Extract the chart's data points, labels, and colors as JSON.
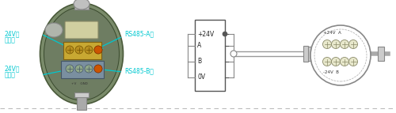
{
  "bg_color": "#ffffff",
  "cyan_color": "#00c8d0",
  "figsize": [
    5.0,
    1.43
  ],
  "dpi": 100,
  "box_labels": [
    "+24V",
    "A",
    "B",
    "0V"
  ],
  "circle_top_label": "+24V  A",
  "circle_bot_label": "-24V  B"
}
